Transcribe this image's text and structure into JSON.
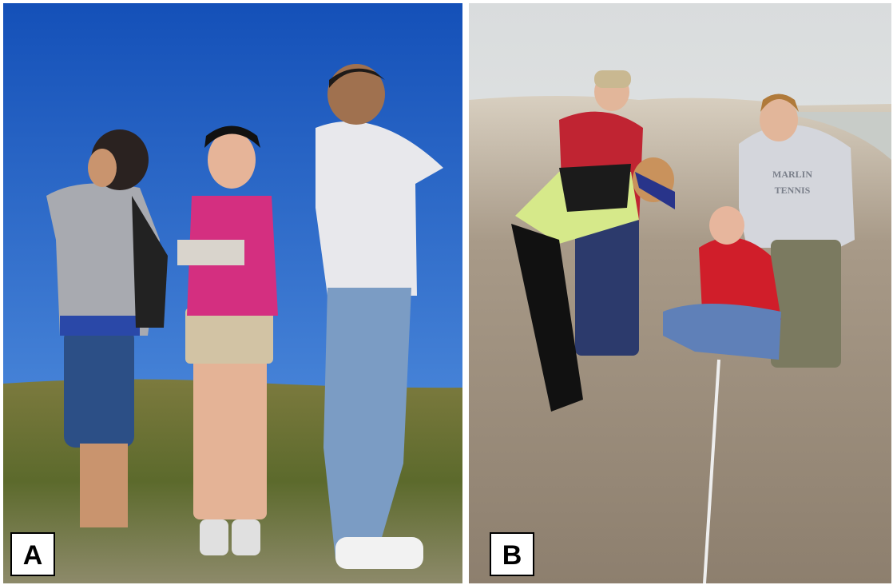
{
  "panels": [
    {
      "label": "A"
    },
    {
      "label": "B",
      "shirt_text": [
        "MARLIN",
        "TENNIS"
      ]
    }
  ]
}
